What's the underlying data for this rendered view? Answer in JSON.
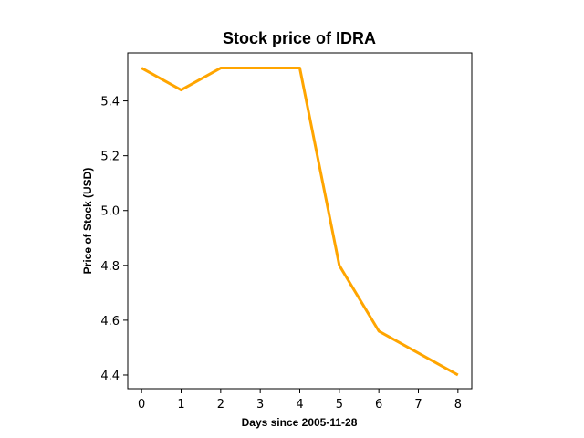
{
  "chart_data": {
    "type": "line",
    "title": "Stock price of IDRA",
    "xlabel": "Days since 2005-11-28",
    "ylabel": "Price of Stock (USD)",
    "x": [
      0,
      1,
      2,
      3,
      4,
      5,
      6,
      7,
      8
    ],
    "series": [
      {
        "values": [
          5.52,
          5.44,
          5.52,
          5.52,
          5.52,
          4.8,
          4.56,
          4.48,
          4.4
        ],
        "color": "#FFA500"
      }
    ],
    "xlim": [
      -0.35,
      8.35
    ],
    "ylim": [
      4.35,
      5.575
    ],
    "xticks": [
      0,
      1,
      2,
      3,
      4,
      5,
      6,
      7,
      8
    ],
    "xtick_labels": [
      "0",
      "1",
      "2",
      "3",
      "4",
      "5",
      "6",
      "7",
      "8"
    ],
    "yticks": [
      4.4,
      4.6,
      4.8,
      5.0,
      5.2,
      5.4
    ],
    "ytick_labels": [
      "4.4",
      "4.6",
      "4.8",
      "5.0",
      "5.2",
      "5.4"
    ],
    "grid": false,
    "legend": false
  }
}
